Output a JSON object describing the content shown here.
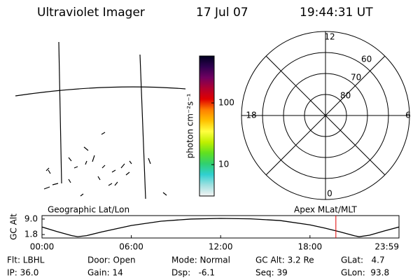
{
  "header": {
    "title": "Ultraviolet Imager",
    "date": "17 Jul 07",
    "time": "19:44:31 UT"
  },
  "colorbar": {
    "label": "photon cm⁻²s⁻¹",
    "log": true,
    "range": [
      3.1,
      577
    ],
    "ticks": [
      10,
      100
    ],
    "colors": [
      "#f4f4f4",
      "#a0e0e0",
      "#30d0d0",
      "#30d070",
      "#60e020",
      "#c0f000",
      "#ffff40",
      "#ffc000",
      "#ff8000",
      "#e00000",
      "#b00030",
      "#700060",
      "#300050",
      "#000020"
    ]
  },
  "polar": {
    "rlim": [
      90,
      50
    ],
    "lat_ticks": [
      60,
      70,
      80
    ],
    "mlt_ticks": [
      0,
      6,
      12,
      18
    ]
  },
  "map_labels": {
    "left": "Geographic Lat/Lon",
    "right": "Apex MLat/MLT"
  },
  "altitude_plot": {
    "ylabel": "GC Alt",
    "ylim": [
      0.2,
      10.6
    ],
    "yticks": [
      {
        "value": 1.8,
        "label": "1.8"
      },
      {
        "value": 9.0,
        "label": "9.0"
      }
    ],
    "xlim": [
      0,
      23.98
    ],
    "xticks": [
      {
        "value": 0,
        "label": "00:00"
      },
      {
        "value": 6,
        "label": "06:00"
      },
      {
        "value": 12,
        "label": "12:00"
      },
      {
        "value": 18,
        "label": "18:00"
      },
      {
        "value": 23.98,
        "label": "23:59"
      }
    ],
    "x": [
      0,
      1,
      2,
      2.4,
      3,
      4,
      6,
      8,
      10,
      12,
      14,
      16,
      18,
      19,
      20,
      21,
      21.3,
      22,
      23,
      23.98
    ],
    "values": [
      5.3,
      3.2,
      1.3,
      0.8,
      1.3,
      3.0,
      6.0,
      8.0,
      9.0,
      9.3,
      9.1,
      8.3,
      6.3,
      4.8,
      3.1,
      1.2,
      0.8,
      1.5,
      3.5,
      5.3
    ],
    "color": "#000000",
    "marker_x": 19.74,
    "marker_color": "#e00000"
  },
  "status": {
    "rows": [
      [
        "Flt: LBHL",
        "Door: Open",
        "Mode: Normal",
        "GC Alt: 3.2 Re",
        "GLat:   4.7"
      ],
      [
        "IP: 36.0",
        "Gain: 14",
        "Dsp:   -6.1",
        "Seq: 39",
        "GLon:  93.8"
      ]
    ]
  }
}
